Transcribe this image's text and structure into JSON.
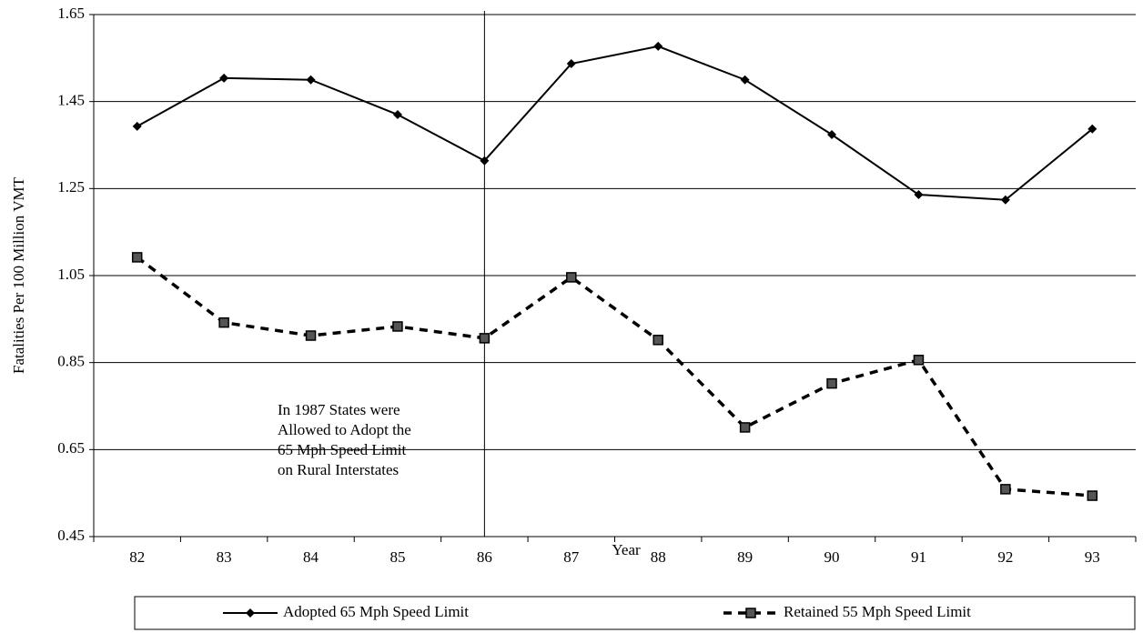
{
  "chart_data": {
    "type": "line",
    "y_label": "Fatalities Per 100 Million VMT",
    "x_label": "Year",
    "categories": [
      "82",
      "83",
      "84",
      "85",
      "86",
      "87",
      "88",
      "89",
      "90",
      "91",
      "92",
      "93"
    ],
    "series": [
      {
        "name": "Adopted 65 Mph Speed Limit",
        "color": "#000000",
        "style": "solid",
        "marker": "diamond",
        "values": [
          1.393,
          1.504,
          1.5,
          1.42,
          1.314,
          1.537,
          1.577,
          1.5,
          1.374,
          1.236,
          1.224,
          1.387
        ]
      },
      {
        "name": "Retained 55 Mph Speed Limit",
        "color": "#000000",
        "style": "dashed",
        "marker": "square",
        "values": [
          1.092,
          0.942,
          0.912,
          0.933,
          0.906,
          1.046,
          0.902,
          0.701,
          0.802,
          0.856,
          0.559,
          0.544
        ]
      }
    ],
    "ylim": [
      0.45,
      1.65
    ],
    "yticks": [
      0.45,
      0.65,
      0.85,
      1.05,
      1.25,
      1.45,
      1.65
    ],
    "grid": true,
    "legend": "bottom",
    "vline": "86",
    "annotation": [
      "In 1987 States were",
      "Allowed to Adopt the",
      "65 Mph Speed Limit",
      "on Rural Interstates"
    ]
  }
}
